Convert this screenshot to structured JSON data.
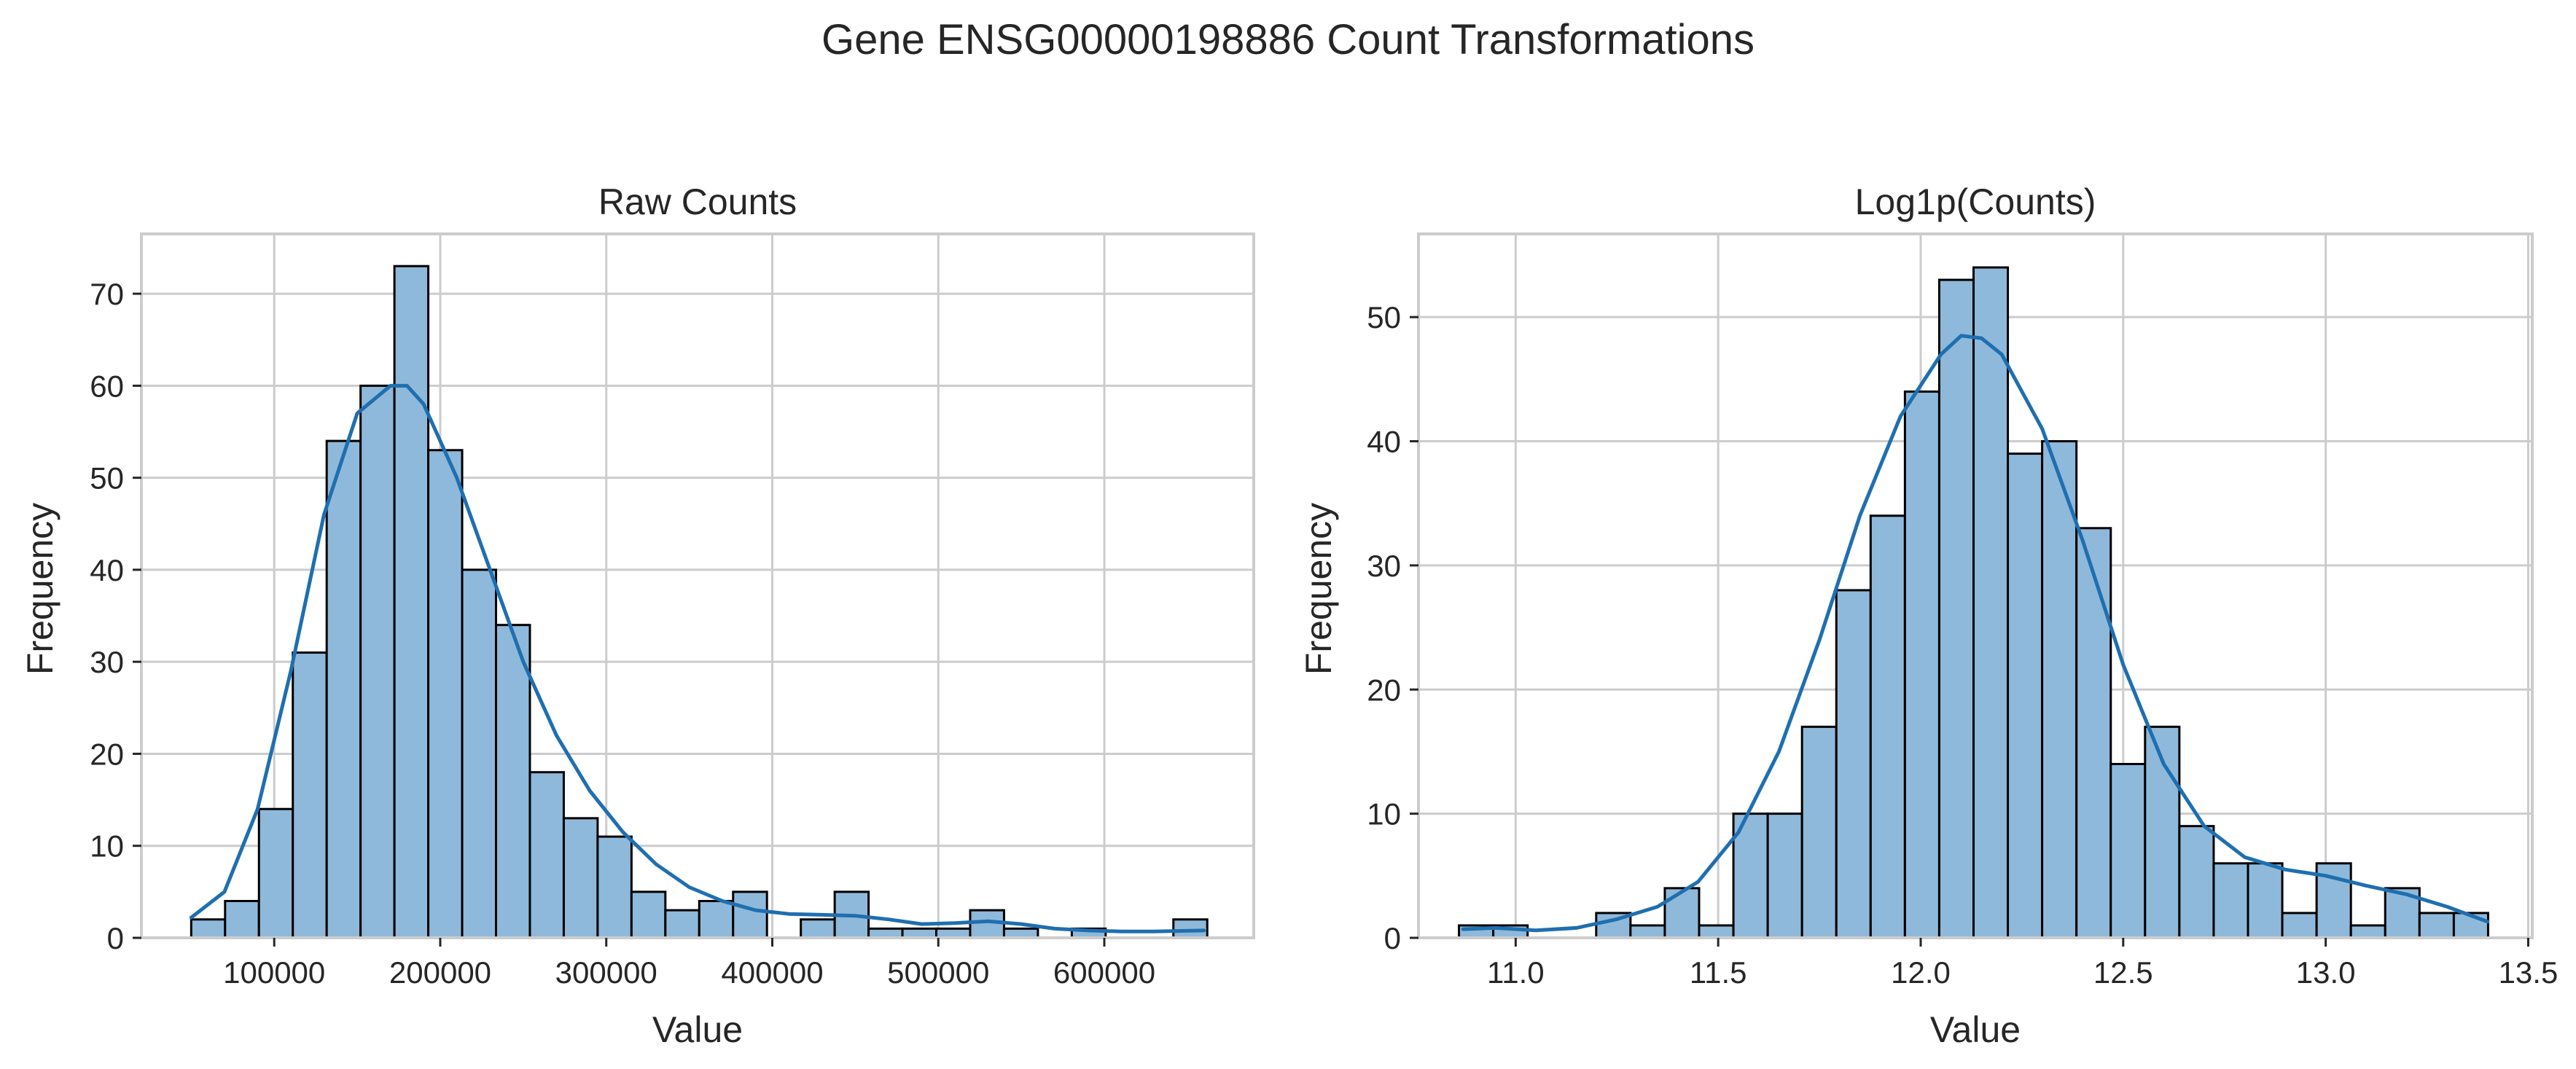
{
  "figure": {
    "suptitle": "Gene ENSG00000198886 Count Transformations"
  },
  "colors": {
    "bar_fill": "#8fb9da",
    "bar_edge": "#000000",
    "kde_line": "#1f6fb0",
    "grid": "#cccccc"
  },
  "chart_data": [
    {
      "type": "bar",
      "subtype": "histogram",
      "title": "Raw Counts",
      "xlabel": "Value",
      "ylabel": "Frequency",
      "xlim": [
        20000,
        690000
      ],
      "ylim": [
        0,
        76.5
      ],
      "xticks": [
        100000,
        200000,
        300000,
        400000,
        500000,
        600000
      ],
      "yticks": [
        0,
        10,
        20,
        30,
        40,
        50,
        60,
        70
      ],
      "grid": true,
      "bin_start": 50000,
      "bin_width": 20400,
      "counts": [
        2,
        4,
        14,
        31,
        54,
        60,
        73,
        53,
        40,
        34,
        18,
        13,
        11,
        5,
        3,
        4,
        5,
        0,
        2,
        5,
        1,
        1,
        1,
        3,
        1,
        0,
        1,
        0,
        0,
        2
      ],
      "kde": {
        "x": [
          50000,
          70000,
          90000,
          110000,
          130000,
          150000,
          170000,
          180000,
          190000,
          210000,
          230000,
          250000,
          270000,
          290000,
          310000,
          330000,
          350000,
          370000,
          390000,
          410000,
          430000,
          450000,
          470000,
          490000,
          510000,
          530000,
          550000,
          570000,
          590000,
          610000,
          630000,
          660000
        ],
        "y": [
          2.2,
          5,
          14,
          29,
          46,
          57,
          60,
          60,
          58,
          50,
          40,
          30,
          22,
          16,
          11.5,
          8,
          5.5,
          4,
          3,
          2.6,
          2.5,
          2.4,
          2,
          1.5,
          1.6,
          1.8,
          1.5,
          1,
          0.8,
          0.7,
          0.7,
          0.8
        ]
      }
    },
    {
      "type": "bar",
      "subtype": "histogram",
      "title": "Log1p(Counts)",
      "xlabel": "Value",
      "ylabel": "Frequency",
      "xlim": [
        10.76,
        13.51
      ],
      "ylim": [
        0,
        56.7
      ],
      "xticks": [
        11.0,
        11.5,
        12.0,
        12.5,
        13.0,
        13.5
      ],
      "xtick_labels": [
        "11.0",
        "11.5",
        "12.0",
        "12.5",
        "13.0",
        "13.5"
      ],
      "yticks": [
        0,
        10,
        20,
        30,
        40,
        50
      ],
      "grid": true,
      "bin_start": 10.86,
      "bin_width": 0.0847,
      "counts": [
        1,
        1,
        0,
        0,
        2,
        1,
        4,
        1,
        10,
        10,
        17,
        28,
        34,
        44,
        53,
        54,
        39,
        40,
        33,
        14,
        17,
        9,
        6,
        6,
        2,
        6,
        1,
        4,
        2,
        2
      ],
      "kde": {
        "x": [
          10.87,
          10.95,
          11.05,
          11.15,
          11.25,
          11.35,
          11.45,
          11.55,
          11.65,
          11.75,
          11.85,
          11.95,
          12.05,
          12.1,
          12.15,
          12.2,
          12.3,
          12.4,
          12.5,
          12.6,
          12.7,
          12.8,
          12.9,
          13.0,
          13.1,
          13.2,
          13.3,
          13.4
        ],
        "y": [
          0.7,
          0.8,
          0.6,
          0.8,
          1.5,
          2.5,
          4.5,
          8.5,
          15,
          24,
          34,
          42,
          47,
          48.5,
          48.3,
          47,
          41,
          32,
          22,
          14,
          9,
          6.5,
          5.5,
          5,
          4.2,
          3.5,
          2.5,
          1.3
        ]
      }
    }
  ]
}
